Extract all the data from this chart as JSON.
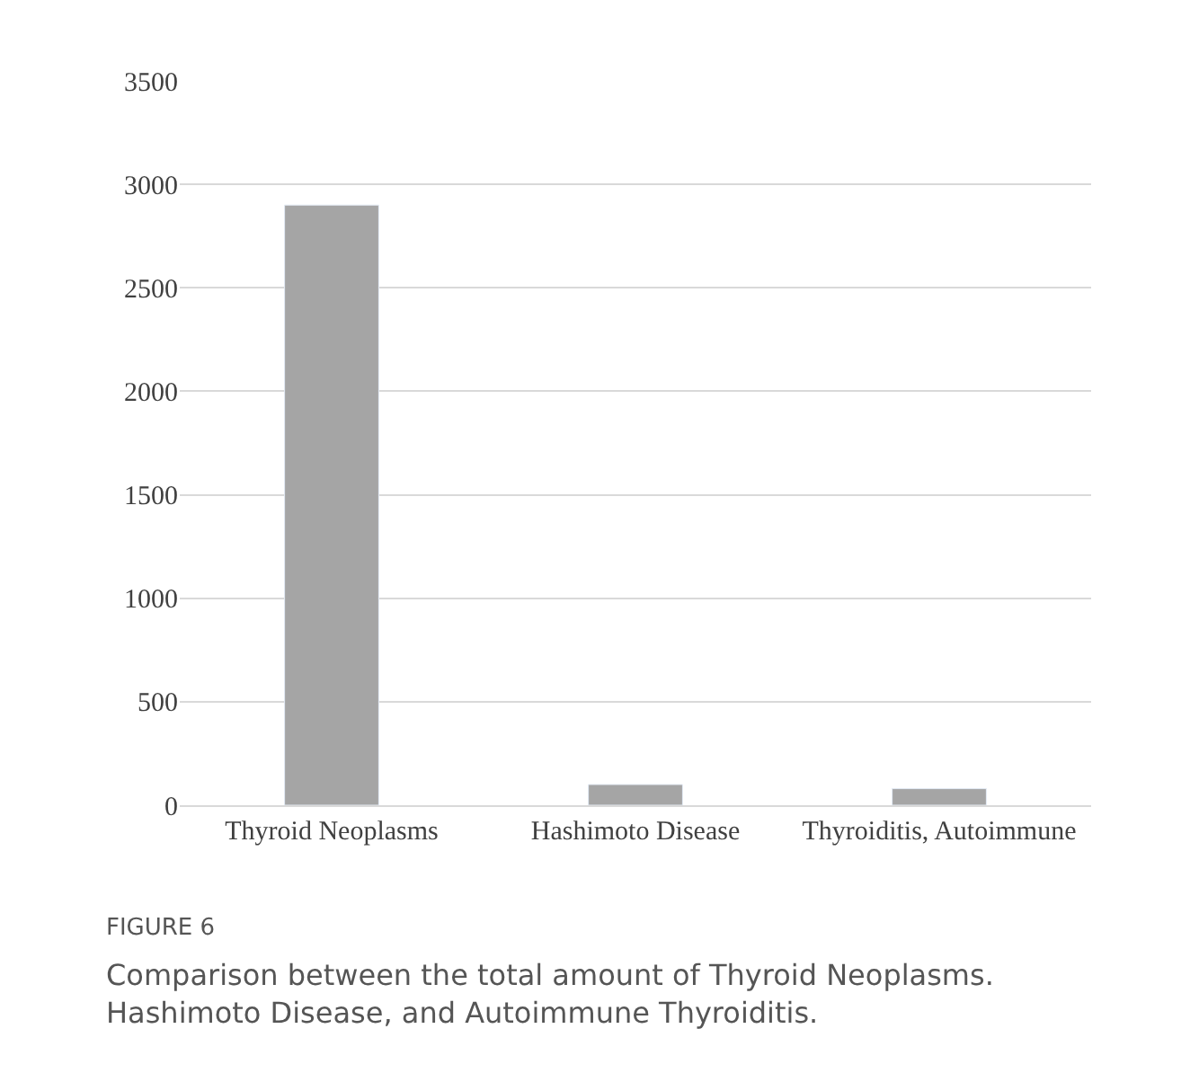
{
  "chart_data": {
    "type": "bar",
    "categories": [
      "Thyroid Neoplasms",
      "Hashimoto Disease",
      "Thyroiditis, Autoimmune"
    ],
    "values": [
      2900,
      100,
      80
    ],
    "color": "#a5a5a5",
    "ylim": [
      0,
      3500
    ],
    "yticks": [
      0,
      500,
      1000,
      1500,
      2000,
      2500,
      3000,
      3500
    ],
    "grid": "y",
    "annotations": [
      "FIGURE 6",
      "Comparison between the total amount of Thyroid Neoplasms.\nHashimoto Disease, and Autoimmune Thyroiditis."
    ]
  }
}
